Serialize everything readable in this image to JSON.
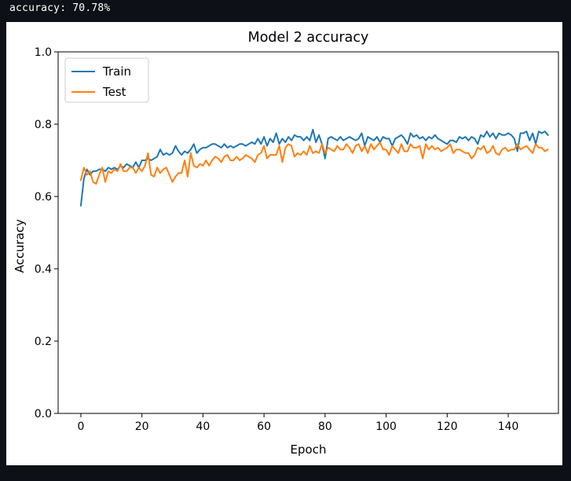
{
  "console": {
    "output_text": "accuracy: 70.78%"
  },
  "chart_data": {
    "type": "line",
    "title": "Model 2 accuracy",
    "xlabel": "Epoch",
    "ylabel": "Accuracy",
    "xlim": [
      -7.45,
      156.45
    ],
    "ylim": [
      0.0,
      1.0
    ],
    "xticks": [
      0,
      20,
      40,
      60,
      80,
      100,
      120,
      140
    ],
    "yticks": [
      0.0,
      0.2,
      0.4,
      0.6,
      0.8,
      1.0
    ],
    "xtick_labels": [
      "0",
      "20",
      "40",
      "60",
      "80",
      "100",
      "120",
      "140"
    ],
    "ytick_labels": [
      "0.0",
      "0.2",
      "0.4",
      "0.6",
      "0.8",
      "1.0"
    ],
    "grid": false,
    "legend_position": "top-left",
    "x_start": 0,
    "series": [
      {
        "name": "Train",
        "color": "#1f77b4",
        "values": [
          0.575,
          0.65,
          0.675,
          0.66,
          0.67,
          0.67,
          0.675,
          0.675,
          0.67,
          0.68,
          0.675,
          0.68,
          0.675,
          0.685,
          0.68,
          0.69,
          0.685,
          0.68,
          0.695,
          0.68,
          0.7,
          0.7,
          0.705,
          0.7,
          0.705,
          0.71,
          0.73,
          0.715,
          0.72,
          0.715,
          0.72,
          0.74,
          0.725,
          0.715,
          0.725,
          0.72,
          0.73,
          0.745,
          0.72,
          0.73,
          0.735,
          0.735,
          0.74,
          0.745,
          0.745,
          0.74,
          0.735,
          0.745,
          0.735,
          0.74,
          0.735,
          0.74,
          0.745,
          0.745,
          0.74,
          0.745,
          0.75,
          0.745,
          0.76,
          0.745,
          0.765,
          0.74,
          0.76,
          0.75,
          0.775,
          0.745,
          0.76,
          0.75,
          0.765,
          0.755,
          0.77,
          0.765,
          0.765,
          0.755,
          0.765,
          0.755,
          0.785,
          0.75,
          0.77,
          0.745,
          0.705,
          0.76,
          0.765,
          0.76,
          0.755,
          0.765,
          0.755,
          0.76,
          0.765,
          0.76,
          0.755,
          0.76,
          0.775,
          0.74,
          0.765,
          0.76,
          0.755,
          0.765,
          0.75,
          0.765,
          0.76,
          0.76,
          0.74,
          0.76,
          0.765,
          0.77,
          0.76,
          0.745,
          0.775,
          0.765,
          0.77,
          0.76,
          0.765,
          0.755,
          0.765,
          0.76,
          0.77,
          0.76,
          0.755,
          0.75,
          0.745,
          0.755,
          0.755,
          0.75,
          0.765,
          0.76,
          0.765,
          0.755,
          0.765,
          0.76,
          0.745,
          0.77,
          0.765,
          0.78,
          0.765,
          0.775,
          0.76,
          0.775,
          0.77,
          0.77,
          0.775,
          0.77,
          0.76,
          0.725,
          0.775,
          0.775,
          0.78,
          0.755,
          0.775,
          0.745,
          0.78,
          0.775,
          0.78,
          0.77
        ],
        "line_width": 2
      },
      {
        "name": "Test",
        "color": "#ff7f0e",
        "values": [
          0.645,
          0.68,
          0.66,
          0.67,
          0.64,
          0.635,
          0.66,
          0.68,
          0.64,
          0.67,
          0.665,
          0.675,
          0.67,
          0.69,
          0.67,
          0.67,
          0.68,
          0.68,
          0.665,
          0.68,
          0.67,
          0.685,
          0.72,
          0.66,
          0.655,
          0.68,
          0.665,
          0.675,
          0.68,
          0.66,
          0.64,
          0.655,
          0.665,
          0.665,
          0.7,
          0.655,
          0.72,
          0.685,
          0.68,
          0.69,
          0.685,
          0.7,
          0.685,
          0.7,
          0.71,
          0.705,
          0.695,
          0.71,
          0.715,
          0.7,
          0.7,
          0.71,
          0.7,
          0.705,
          0.715,
          0.71,
          0.705,
          0.695,
          0.715,
          0.72,
          0.74,
          0.705,
          0.715,
          0.715,
          0.715,
          0.74,
          0.695,
          0.735,
          0.745,
          0.74,
          0.71,
          0.72,
          0.715,
          0.725,
          0.715,
          0.74,
          0.72,
          0.725,
          0.72,
          0.745,
          0.72,
          0.735,
          0.73,
          0.725,
          0.74,
          0.73,
          0.73,
          0.745,
          0.735,
          0.72,
          0.74,
          0.745,
          0.725,
          0.74,
          0.72,
          0.745,
          0.73,
          0.74,
          0.75,
          0.73,
          0.73,
          0.715,
          0.74,
          0.73,
          0.72,
          0.745,
          0.725,
          0.725,
          0.745,
          0.735,
          0.735,
          0.74,
          0.705,
          0.745,
          0.73,
          0.74,
          0.73,
          0.735,
          0.725,
          0.73,
          0.735,
          0.745,
          0.72,
          0.73,
          0.73,
          0.725,
          0.72,
          0.72,
          0.705,
          0.715,
          0.735,
          0.73,
          0.74,
          0.72,
          0.725,
          0.74,
          0.72,
          0.715,
          0.73,
          0.735,
          0.725,
          0.73,
          0.73,
          0.745,
          0.73,
          0.735,
          0.74,
          0.73,
          0.72,
          0.745,
          0.735,
          0.735,
          0.725,
          0.73
        ],
        "line_width": 2
      }
    ]
  }
}
